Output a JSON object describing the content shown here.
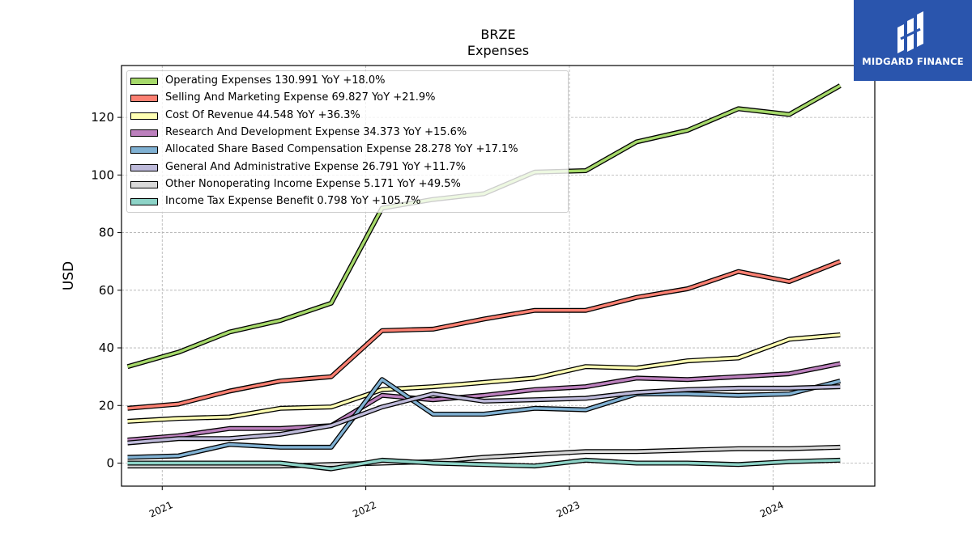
{
  "title": "BRZE",
  "subtitle": "Expenses",
  "logo_text": "MIDGARD FINANCE",
  "chart_data": {
    "type": "line",
    "ylabel": "USD",
    "ylim": [
      -8,
      138
    ],
    "yticks": [
      0,
      20,
      40,
      60,
      80,
      100,
      120
    ],
    "xlim": [
      2020.8,
      2024.5
    ],
    "xticks": [
      {
        "value": 2021.0,
        "label": "2021"
      },
      {
        "value": 2022.0,
        "label": "2022"
      },
      {
        "value": 2023.0,
        "label": "2023"
      },
      {
        "value": 2024.0,
        "label": "2024"
      }
    ],
    "grid": true,
    "legend_position": "top-left",
    "x": [
      2020.83,
      2021.08,
      2021.33,
      2021.58,
      2021.83,
      2022.08,
      2022.33,
      2022.58,
      2022.83,
      2023.08,
      2023.33,
      2023.58,
      2023.83,
      2024.08,
      2024.33
    ],
    "series": [
      {
        "name": "Operating Expenses",
        "legend": "Operating Expenses  130.991 YoY +18.0%",
        "color": "#a6d96a",
        "values": [
          33.5,
          38.5,
          45.5,
          49.5,
          55.5,
          88.5,
          91.5,
          93.5,
          101.0,
          101.5,
          111.5,
          115.5,
          123.0,
          121.0,
          131.0
        ]
      },
      {
        "name": "Selling And Marketing Expense",
        "legend": "Selling And Marketing Expense  69.827 YoY +21.9%",
        "color": "#fb8072",
        "values": [
          19.0,
          20.5,
          25.0,
          28.5,
          30.0,
          46.0,
          46.5,
          50.0,
          53.0,
          53.0,
          57.5,
          60.5,
          66.5,
          63.0,
          70.0
        ]
      },
      {
        "name": "Cost Of Revenue",
        "legend": "Cost Of Revenue  44.548 YoY +36.3%",
        "color": "#ffffb3",
        "values": [
          14.5,
          15.5,
          16.0,
          19.0,
          19.5,
          25.5,
          26.5,
          28.0,
          29.5,
          33.5,
          33.0,
          35.5,
          36.5,
          43.0,
          44.5
        ]
      },
      {
        "name": "Research And Development Expense",
        "legend": "Research And Development Expense  34.373 YoY +15.6%",
        "color": "#bc80bd",
        "values": [
          8.0,
          9.5,
          12.0,
          12.0,
          13.0,
          23.5,
          22.0,
          23.5,
          25.5,
          26.5,
          29.5,
          29.0,
          30.0,
          31.0,
          34.5
        ]
      },
      {
        "name": "Allocated Share Based Compensation Expense",
        "legend": "Allocated Share Based Compensation Expense  28.278 YoY +17.1%",
        "color": "#80b1d3",
        "values": [
          2.0,
          2.5,
          6.5,
          5.5,
          5.5,
          29.0,
          17.0,
          17.0,
          19.0,
          18.5,
          24.0,
          24.0,
          23.5,
          24.0,
          28.5
        ]
      },
      {
        "name": "General And Administrative Expense",
        "legend": "General And Administrative Expense  26.791 YoY +11.7%",
        "color": "#bebada",
        "values": [
          7.0,
          8.5,
          8.5,
          10.0,
          13.0,
          19.5,
          24.0,
          21.5,
          22.0,
          22.5,
          24.5,
          25.5,
          26.0,
          26.0,
          26.5
        ]
      },
      {
        "name": "Other Nonoperating Income Expense",
        "legend": "Other Nonoperating Income Expense  5.171 YoY +49.5%",
        "color": "#d9d9d9",
        "values": [
          -1.0,
          -1.0,
          -1.0,
          -1.0,
          -0.5,
          0.0,
          0.5,
          2.0,
          3.0,
          4.0,
          4.0,
          4.5,
          5.0,
          5.0,
          5.5
        ]
      },
      {
        "name": "Income Tax Expense Benefit",
        "legend": "Income Tax Expense Benefit  0.798 YoY +105.7%",
        "color": "#8dd3c7",
        "values": [
          0.0,
          0.0,
          0.0,
          0.0,
          -2.0,
          1.0,
          0.0,
          -0.5,
          -1.0,
          1.0,
          0.0,
          0.0,
          -0.5,
          0.5,
          1.0
        ]
      }
    ]
  }
}
